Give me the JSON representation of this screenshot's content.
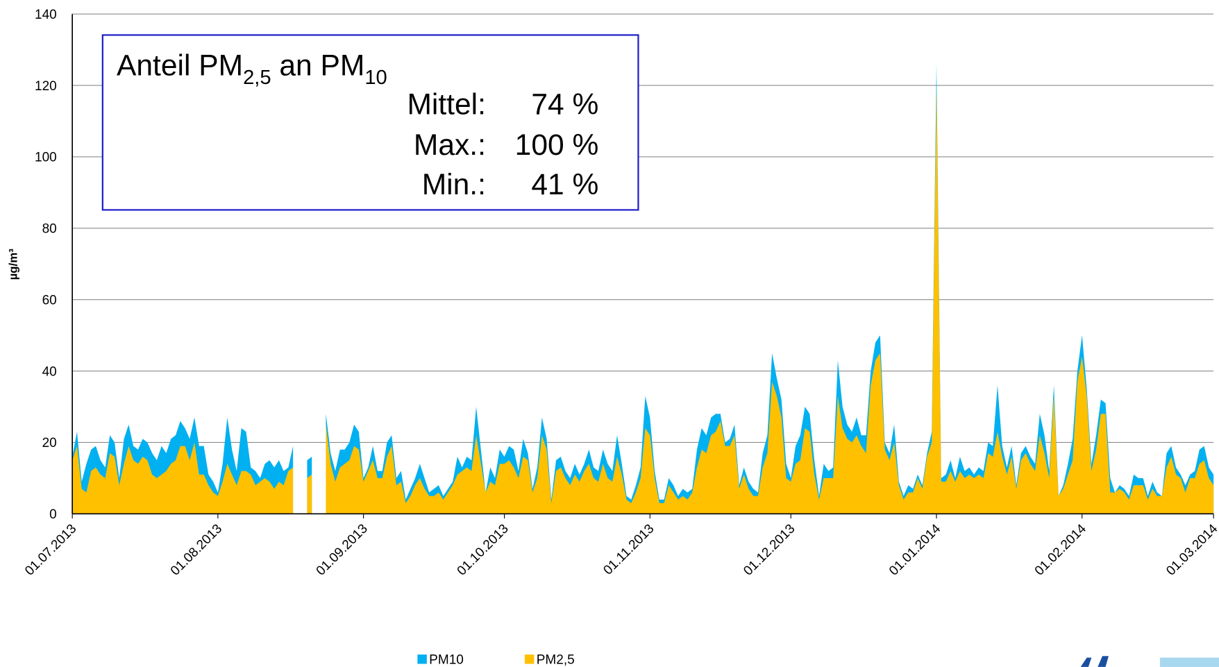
{
  "chart_data": {
    "type": "area",
    "y_label": "µg/m³",
    "xlim": [
      "01.07.2013",
      "01.03.2014"
    ],
    "xticks": [
      "01.07.2013",
      "01.08.2013",
      "01.09.2013",
      "01.10.2013",
      "01.11.2013",
      "01.12.2013",
      "01.01.2014",
      "01.02.2014",
      "01.03.2014"
    ],
    "ylim": [
      0,
      140
    ],
    "yticks": [
      0,
      20,
      40,
      60,
      80,
      100,
      120,
      140
    ],
    "grid": true,
    "x": [
      "01.07.2013",
      "02.07.2013",
      "03.07.2013",
      "04.07.2013",
      "05.07.2013",
      "06.07.2013",
      "07.07.2013",
      "08.07.2013",
      "09.07.2013",
      "10.07.2013",
      "11.07.2013",
      "12.07.2013",
      "13.07.2013",
      "14.07.2013",
      "15.07.2013",
      "16.07.2013",
      "17.07.2013",
      "18.07.2013",
      "19.07.2013",
      "20.07.2013",
      "21.07.2013",
      "22.07.2013",
      "23.07.2013",
      "24.07.2013",
      "25.07.2013",
      "26.07.2013",
      "27.07.2013",
      "28.07.2013",
      "29.07.2013",
      "30.07.2013",
      "31.07.2013",
      "01.08.2013",
      "02.08.2013",
      "03.08.2013",
      "04.08.2013",
      "05.08.2013",
      "06.08.2013",
      "07.08.2013",
      "08.08.2013",
      "09.08.2013",
      "10.08.2013",
      "11.08.2013",
      "12.08.2013",
      "13.08.2013",
      "14.08.2013",
      "15.08.2013",
      "16.08.2013",
      "17.08.2013",
      "18.08.2013",
      "19.08.2013",
      "20.08.2013",
      "21.08.2013",
      "22.08.2013",
      "23.08.2013",
      "24.08.2013",
      "25.08.2013",
      "26.08.2013",
      "27.08.2013",
      "28.08.2013",
      "29.08.2013",
      "30.08.2013",
      "31.08.2013",
      "01.09.2013",
      "02.09.2013",
      "03.09.2013",
      "04.09.2013",
      "05.09.2013",
      "06.09.2013",
      "07.09.2013",
      "08.09.2013",
      "09.09.2013",
      "10.09.2013",
      "11.09.2013",
      "12.09.2013",
      "13.09.2013",
      "14.09.2013",
      "15.09.2013",
      "16.09.2013",
      "17.09.2013",
      "18.09.2013",
      "19.09.2013",
      "20.09.2013",
      "21.09.2013",
      "22.09.2013",
      "23.09.2013",
      "24.09.2013",
      "25.09.2013",
      "26.09.2013",
      "27.09.2013",
      "28.09.2013",
      "29.09.2013",
      "30.09.2013",
      "01.10.2013",
      "02.10.2013",
      "03.10.2013",
      "04.10.2013",
      "05.10.2013",
      "06.10.2013",
      "07.10.2013",
      "08.10.2013",
      "09.10.2013",
      "10.10.2013",
      "11.10.2013",
      "12.10.2013",
      "13.10.2013",
      "14.10.2013",
      "15.10.2013",
      "16.10.2013",
      "17.10.2013",
      "18.10.2013",
      "19.10.2013",
      "20.10.2013",
      "21.10.2013",
      "22.10.2013",
      "23.10.2013",
      "24.10.2013",
      "25.10.2013",
      "26.10.2013",
      "27.10.2013",
      "28.10.2013",
      "29.10.2013",
      "30.10.2013",
      "31.10.2013",
      "01.11.2013",
      "02.11.2013",
      "03.11.2013",
      "04.11.2013",
      "05.11.2013",
      "06.11.2013",
      "07.11.2013",
      "08.11.2013",
      "09.11.2013",
      "10.11.2013",
      "11.11.2013",
      "12.11.2013",
      "13.11.2013",
      "14.11.2013",
      "15.11.2013",
      "16.11.2013",
      "17.11.2013",
      "18.11.2013",
      "19.11.2013",
      "20.11.2013",
      "21.11.2013",
      "22.11.2013",
      "23.11.2013",
      "24.11.2013",
      "25.11.2013",
      "26.11.2013",
      "27.11.2013",
      "28.11.2013",
      "29.11.2013",
      "30.11.2013",
      "01.12.2013",
      "02.12.2013",
      "03.12.2013",
      "04.12.2013",
      "05.12.2013",
      "06.12.2013",
      "07.12.2013",
      "08.12.2013",
      "09.12.2013",
      "10.12.2013",
      "11.12.2013",
      "12.12.2013",
      "13.12.2013",
      "14.12.2013",
      "15.12.2013",
      "16.12.2013",
      "17.12.2013",
      "18.12.2013",
      "19.12.2013",
      "20.12.2013",
      "21.12.2013",
      "22.12.2013",
      "23.12.2013",
      "24.12.2013",
      "25.12.2013",
      "26.12.2013",
      "27.12.2013",
      "28.12.2013",
      "29.12.2013",
      "30.12.2013",
      "31.12.2013",
      "01.01.2014",
      "02.01.2014",
      "03.01.2014",
      "04.01.2014",
      "05.01.2014",
      "06.01.2014",
      "07.01.2014",
      "08.01.2014",
      "09.01.2014",
      "10.01.2014",
      "11.01.2014",
      "12.01.2014",
      "13.01.2014",
      "14.01.2014",
      "15.01.2014",
      "16.01.2014",
      "17.01.2014",
      "18.01.2014",
      "19.01.2014",
      "20.01.2014",
      "21.01.2014",
      "22.01.2014",
      "23.01.2014",
      "24.01.2014",
      "25.01.2014",
      "26.01.2014",
      "27.01.2014",
      "28.01.2014",
      "29.01.2014",
      "30.01.2014",
      "31.01.2014",
      "01.02.2014",
      "02.02.2014",
      "03.02.2014",
      "04.02.2014",
      "05.02.2014",
      "06.02.2014",
      "07.02.2014",
      "08.02.2014",
      "09.02.2014",
      "10.02.2014",
      "11.02.2014",
      "12.02.2014",
      "13.02.2014",
      "14.02.2014",
      "15.02.2014",
      "16.02.2014",
      "17.02.2014",
      "18.02.2014",
      "19.02.2014",
      "20.02.2014",
      "21.02.2014",
      "22.02.2014",
      "23.02.2014",
      "24.02.2014",
      "25.02.2014",
      "26.02.2014",
      "27.02.2014",
      "28.02.2014",
      "01.03.2014"
    ],
    "series": [
      {
        "name": "PM10",
        "color": "#00b0f0",
        "values": [
          16,
          23,
          9,
          14,
          18,
          19,
          15,
          13,
          22,
          20,
          10,
          21,
          25,
          19,
          18,
          21,
          20,
          17,
          15,
          19,
          17,
          21,
          22,
          26,
          24,
          21,
          27,
          19,
          19,
          11,
          9,
          6,
          14,
          27,
          18,
          12,
          24,
          23,
          13,
          12,
          10,
          14,
          15,
          13,
          15,
          12,
          13,
          19,
          null,
          null,
          15,
          16,
          null,
          null,
          28,
          17,
          12,
          18,
          18,
          20,
          25,
          23,
          10,
          13,
          19,
          12,
          12,
          20,
          22,
          10,
          12,
          4,
          7,
          10,
          14,
          10,
          6,
          7,
          8,
          5,
          7,
          9,
          16,
          13,
          16,
          15,
          30,
          18,
          6,
          13,
          10,
          18,
          16,
          19,
          18,
          12,
          21,
          17,
          7,
          13,
          27,
          21,
          4,
          15,
          16,
          12,
          10,
          14,
          11,
          14,
          18,
          13,
          12,
          18,
          14,
          12,
          22,
          14,
          5,
          4,
          8,
          13,
          33,
          27,
          12,
          4,
          4,
          10,
          8,
          5,
          7,
          6,
          7,
          18,
          24,
          22,
          27,
          28,
          28,
          20,
          21,
          25,
          8,
          13,
          9,
          7,
          6,
          17,
          22,
          45,
          38,
          32,
          14,
          10,
          19,
          22,
          30,
          28,
          15,
          5,
          14,
          12,
          13,
          43,
          30,
          25,
          23,
          27,
          22,
          22,
          40,
          48,
          50,
          20,
          17,
          25,
          9,
          5,
          8,
          7,
          11,
          8,
          17,
          23,
          126,
          10,
          11,
          15,
          10,
          16,
          12,
          13,
          11,
          13,
          12,
          20,
          19,
          36,
          19,
          13,
          19,
          8,
          17,
          19,
          16,
          14,
          28,
          22,
          12,
          36,
          5,
          8,
          14,
          21,
          40,
          50,
          35,
          14,
          22,
          32,
          31,
          10,
          6,
          8,
          7,
          5,
          11,
          10,
          10,
          5,
          9,
          6,
          5,
          17,
          19,
          13,
          11,
          8,
          11,
          12,
          18,
          19,
          13,
          11
        ]
      },
      {
        "name": "PM2,5",
        "color": "#ffc000",
        "values": [
          15,
          19,
          7,
          6,
          12,
          13,
          11,
          10,
          17,
          16,
          8,
          14,
          19,
          15,
          14,
          16,
          15,
          11,
          10,
          11,
          12,
          14,
          15,
          19,
          19,
          15,
          20,
          11,
          11,
          8,
          6,
          5,
          9,
          14,
          11,
          8,
          12,
          12,
          11,
          8,
          9,
          10,
          9,
          7,
          9,
          8,
          12,
          13,
          null,
          null,
          10,
          11,
          null,
          null,
          25,
          14,
          9,
          13,
          14,
          15,
          19,
          18,
          9,
          12,
          15,
          10,
          10,
          16,
          19,
          8,
          9,
          3,
          5,
          8,
          10,
          7,
          5,
          5,
          6,
          4,
          6,
          8,
          11,
          12,
          13,
          12,
          22,
          14,
          6,
          9,
          8,
          14,
          14,
          15,
          13,
          10,
          16,
          15,
          6,
          10,
          22,
          18,
          3,
          12,
          13,
          10,
          8,
          11,
          9,
          12,
          14,
          10,
          9,
          14,
          10,
          9,
          16,
          11,
          4,
          3,
          6,
          10,
          24,
          22,
          10,
          3,
          3,
          8,
          6,
          4,
          5,
          4,
          6,
          13,
          18,
          17,
          22,
          23,
          26,
          19,
          19,
          22,
          7,
          11,
          7,
          5,
          5,
          13,
          17,
          37,
          33,
          27,
          10,
          9,
          14,
          15,
          24,
          23,
          11,
          4,
          10,
          10,
          10,
          33,
          24,
          21,
          20,
          22,
          19,
          17,
          36,
          43,
          45,
          18,
          15,
          20,
          8,
          4,
          6,
          6,
          10,
          7,
          16,
          20,
          120,
          9,
          9,
          12,
          9,
          12,
          10,
          11,
          10,
          11,
          10,
          17,
          16,
          23,
          16,
          11,
          16,
          7,
          15,
          17,
          14,
          12,
          22,
          17,
          10,
          33,
          5,
          7,
          11,
          15,
          37,
          44,
          33,
          12,
          18,
          28,
          28,
          6,
          6,
          7,
          6,
          4,
          8,
          8,
          8,
          4,
          7,
          5,
          5,
          13,
          16,
          11,
          10,
          6,
          10,
          10,
          14,
          15,
          10,
          8
        ]
      }
    ],
    "annotation": {
      "title_parts": [
        "Anteil PM",
        "2,5",
        " an PM",
        "10"
      ],
      "rows": [
        {
          "label": "Mittel:",
          "text": "74 %"
        },
        {
          "label": "Max.:",
          "text": "100 %"
        },
        {
          "label": "Min.:",
          "text": "41 %"
        }
      ]
    }
  }
}
